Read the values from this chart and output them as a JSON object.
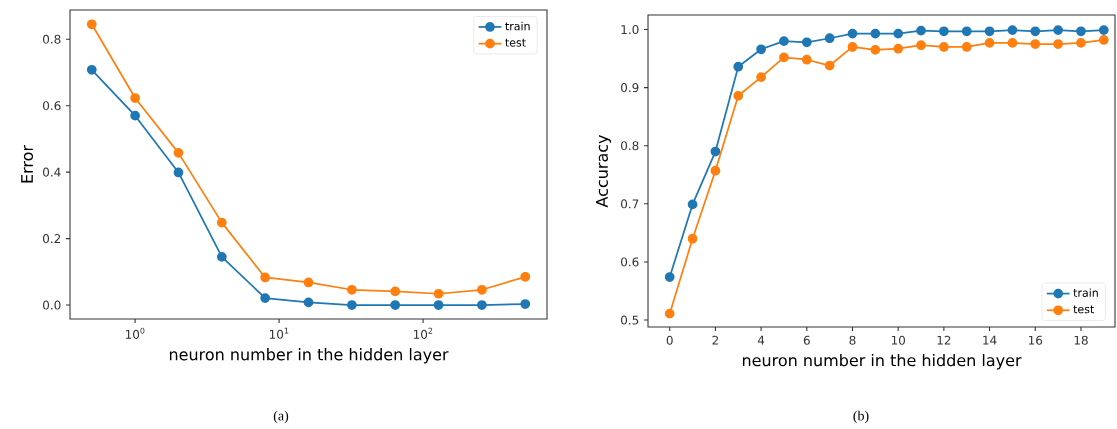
{
  "chart_data": [
    {
      "type": "line",
      "xlabel": "neuron number in the hidden layer",
      "ylabel": "Error",
      "annotations": [
        "(a)"
      ],
      "log": "x",
      "legend": "top right",
      "marker": "circle",
      "line_style": "solid",
      "x": [
        0.5,
        1,
        2,
        4,
        8,
        16,
        32,
        64,
        128,
        256,
        512
      ],
      "series": [
        {
          "name": "train",
          "color": "#1f77b4",
          "values": [
            0.708,
            0.57,
            0.399,
            0.145,
            0.021,
            0.008,
            0.0,
            0.0,
            0.0,
            0.0,
            0.003
          ]
        },
        {
          "name": "test",
          "color": "#ff7f0e",
          "values": [
            0.845,
            0.623,
            0.458,
            0.248,
            0.083,
            0.068,
            0.046,
            0.041,
            0.034,
            0.046,
            0.085
          ]
        }
      ],
      "xlim": [
        0.353,
        725
      ],
      "ylim": [
        -0.042,
        0.888
      ],
      "xticks": [
        {
          "value": 1,
          "label": "10$^{0}$"
        },
        {
          "value": 10,
          "label": "10$^{1}$"
        },
        {
          "value": 100,
          "label": "10$^{2}$"
        }
      ],
      "yticks": [
        {
          "value": 0,
          "label": "0.0"
        },
        0.2,
        0.4,
        0.6,
        0.8
      ]
    },
    {
      "type": "line",
      "xlabel": "neuron number in the hidden layer",
      "ylabel": "Accuracy",
      "annotations": [
        "(b)"
      ],
      "legend": "bottom right",
      "marker": "circle",
      "line_style": "solid",
      "x": [
        0,
        1,
        2,
        3,
        4,
        5,
        6,
        7,
        8,
        9,
        10,
        11,
        12,
        13,
        14,
        15,
        16,
        17,
        18,
        19
      ],
      "series": [
        {
          "name": "train",
          "color": "#1f77b4",
          "values": [
            0.574,
            0.699,
            0.79,
            0.936,
            0.966,
            0.98,
            0.978,
            0.985,
            0.993,
            0.993,
            0.993,
            0.998,
            0.997,
            0.997,
            0.997,
            0.999,
            0.997,
            0.999,
            0.997,
            0.999
          ]
        },
        {
          "name": "test",
          "color": "#ff7f0e",
          "values": [
            0.511,
            0.64,
            0.757,
            0.886,
            0.918,
            0.952,
            0.948,
            0.938,
            0.97,
            0.965,
            0.967,
            0.973,
            0.97,
            0.97,
            0.977,
            0.977,
            0.975,
            0.975,
            0.977,
            0.982
          ]
        }
      ],
      "xlim": [
        -0.95,
        19.49
      ],
      "ylim": [
        0.488,
        1.025
      ],
      "xticks": [
        0,
        2,
        4,
        6,
        8,
        10,
        12,
        14,
        16,
        18
      ],
      "yticks": [
        0.5,
        0.6,
        0.7,
        0.8,
        0.9,
        {
          "value": 1,
          "label": "1.0"
        }
      ]
    }
  ]
}
